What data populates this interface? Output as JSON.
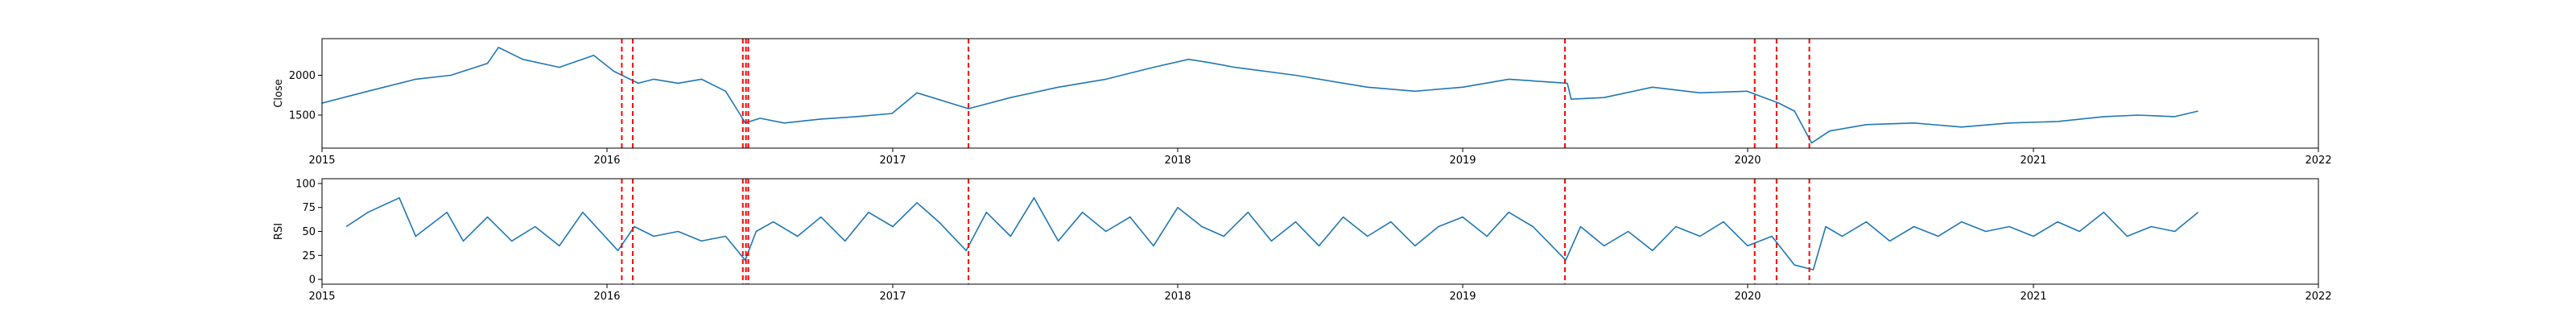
{
  "chart_data": [
    {
      "type": "line",
      "ylabel": "Close",
      "xlim": [
        "2015-01-01",
        "2022-01-01"
      ],
      "ylim": [
        1085,
        2460
      ],
      "x_ticks": [
        "2015",
        "2016",
        "2017",
        "2018",
        "2019",
        "2020",
        "2021",
        "2022"
      ],
      "y_ticks": [
        1500,
        2000
      ],
      "series": [
        {
          "color": "#1f77b4",
          "x": [
            "2015-01-01",
            "2015-03-01",
            "2015-05-01",
            "2015-06-15",
            "2015-08-01",
            "2015-08-15",
            "2015-09-15",
            "2015-11-01",
            "2015-12-15",
            "2016-01-10",
            "2016-02-10",
            "2016-03-01",
            "2016-04-01",
            "2016-05-01",
            "2016-06-01",
            "2016-06-20",
            "2016-06-26",
            "2016-07-15",
            "2016-08-15",
            "2016-10-01",
            "2016-11-15",
            "2016-12-31",
            "2017-02-01",
            "2017-04-08",
            "2017-06-01",
            "2017-08-01",
            "2017-10-01",
            "2017-12-01",
            "2018-01-15",
            "2018-02-10",
            "2018-03-15",
            "2018-06-01",
            "2018-09-01",
            "2018-11-01",
            "2019-01-01",
            "2019-03-01",
            "2019-05-15",
            "2019-05-20",
            "2019-07-01",
            "2019-09-01",
            "2019-11-01",
            "2019-12-31",
            "2020-02-10",
            "2020-03-01",
            "2020-03-23",
            "2020-04-15",
            "2020-06-01",
            "2020-08-01",
            "2020-10-01",
            "2020-12-01",
            "2021-02-01",
            "2021-04-01",
            "2021-05-15",
            "2021-07-01",
            "2021-07-31"
          ],
          "y": [
            1650,
            1800,
            1950,
            2000,
            2150,
            2350,
            2200,
            2100,
            2250,
            2050,
            1900,
            1950,
            1900,
            1950,
            1800,
            1500,
            1400,
            1460,
            1400,
            1450,
            1480,
            1520,
            1780,
            1580,
            1720,
            1850,
            1950,
            2100,
            2200,
            2160,
            2100,
            2000,
            1850,
            1800,
            1850,
            1950,
            1900,
            1700,
            1720,
            1850,
            1780,
            1800,
            1650,
            1550,
            1150,
            1300,
            1380,
            1400,
            1350,
            1400,
            1420,
            1480,
            1500,
            1480,
            1550
          ]
        }
      ],
      "markers": [
        "2016-01-20",
        "2016-02-03",
        "2016-06-23",
        "2016-06-27",
        "2016-06-30",
        "2017-04-08",
        "2019-05-12",
        "2020-01-10",
        "2020-02-07",
        "2020-03-20"
      ]
    },
    {
      "type": "line",
      "ylabel": "RSI",
      "xlim": [
        "2015-01-01",
        "2022-01-01"
      ],
      "ylim": [
        -5,
        105
      ],
      "x_ticks": [
        "2015",
        "2016",
        "2017",
        "2018",
        "2019",
        "2020",
        "2021",
        "2022"
      ],
      "y_ticks": [
        0,
        25,
        50,
        75,
        100
      ],
      "series": [
        {
          "color": "#1f77b4",
          "x": [
            "2015-02-01",
            "2015-03-01",
            "2015-04-10",
            "2015-05-01",
            "2015-06-10",
            "2015-07-01",
            "2015-08-01",
            "2015-09-01",
            "2015-10-01",
            "2015-11-01",
            "2015-12-01",
            "2016-01-15",
            "2016-02-05",
            "2016-03-01",
            "2016-04-01",
            "2016-05-01",
            "2016-06-01",
            "2016-06-26",
            "2016-07-10",
            "2016-08-01",
            "2016-09-01",
            "2016-10-01",
            "2016-11-01",
            "2016-12-01",
            "2017-01-01",
            "2017-02-01",
            "2017-03-01",
            "2017-04-05",
            "2017-05-01",
            "2017-06-01",
            "2017-07-01",
            "2017-08-01",
            "2017-09-01",
            "2017-10-01",
            "2017-11-01",
            "2017-12-01",
            "2018-01-01",
            "2018-02-01",
            "2018-03-01",
            "2018-04-01",
            "2018-05-01",
            "2018-06-01",
            "2018-07-01",
            "2018-08-01",
            "2018-09-01",
            "2018-10-01",
            "2018-11-01",
            "2018-12-01",
            "2019-01-01",
            "2019-02-01",
            "2019-03-01",
            "2019-04-01",
            "2019-05-13",
            "2019-06-01",
            "2019-07-01",
            "2019-08-01",
            "2019-09-01",
            "2019-10-01",
            "2019-11-01",
            "2019-12-01",
            "2020-01-01",
            "2020-02-01",
            "2020-03-01",
            "2020-03-25",
            "2020-04-10",
            "2020-05-01",
            "2020-06-01",
            "2020-07-01",
            "2020-08-01",
            "2020-09-01",
            "2020-10-01",
            "2020-11-01",
            "2020-12-01",
            "2021-01-01",
            "2021-02-01",
            "2021-03-01",
            "2021-04-01",
            "2021-05-01",
            "2021-06-01",
            "2021-07-01",
            "2021-07-31"
          ],
          "y": [
            55,
            70,
            85,
            45,
            70,
            40,
            65,
            40,
            55,
            35,
            70,
            30,
            55,
            45,
            50,
            40,
            45,
            20,
            50,
            60,
            45,
            65,
            40,
            70,
            55,
            80,
            60,
            30,
            70,
            45,
            85,
            40,
            70,
            50,
            65,
            35,
            75,
            55,
            45,
            70,
            40,
            60,
            35,
            65,
            45,
            60,
            35,
            55,
            65,
            45,
            70,
            55,
            20,
            55,
            35,
            50,
            30,
            55,
            45,
            60,
            35,
            45,
            15,
            10,
            55,
            45,
            60,
            40,
            55,
            45,
            60,
            50,
            55,
            45,
            60,
            50,
            70,
            45,
            55,
            50,
            70
          ]
        }
      ],
      "markers": [
        "2016-01-20",
        "2016-02-03",
        "2016-06-23",
        "2016-06-27",
        "2016-06-30",
        "2017-04-08",
        "2019-05-12",
        "2020-01-10",
        "2020-02-07",
        "2020-03-20"
      ]
    }
  ]
}
